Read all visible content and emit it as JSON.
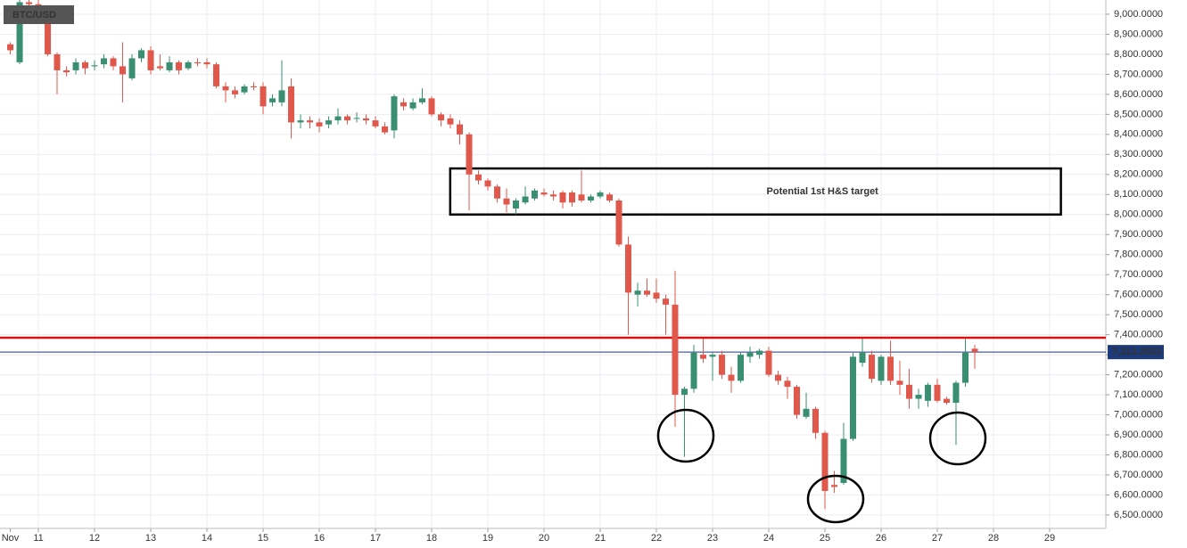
{
  "chart_data": {
    "type": "candlestick",
    "symbol": "BTC/USD",
    "x": [
      10.5,
      10.667,
      10.833,
      11,
      11.167,
      11.333,
      11.5,
      11.667,
      11.833,
      12,
      12.167,
      12.333,
      12.5,
      12.667,
      12.833,
      13,
      13.167,
      13.333,
      13.5,
      13.667,
      13.833,
      14,
      14.167,
      14.333,
      14.5,
      14.667,
      14.833,
      15,
      15.167,
      15.333,
      15.5,
      15.667,
      15.833,
      16,
      16.167,
      16.333,
      16.5,
      16.667,
      16.833,
      17,
      17.167,
      17.333,
      17.5,
      17.667,
      17.833,
      18,
      18.167,
      18.333,
      18.5,
      18.667,
      18.833,
      19,
      19.167,
      19.333,
      19.5,
      19.667,
      19.833,
      20,
      20.167,
      20.333,
      20.5,
      20.667,
      20.833,
      21,
      21.167,
      21.333,
      21.5,
      21.667,
      21.833,
      22,
      22.167,
      22.333,
      22.5,
      22.667,
      22.833,
      23,
      23.167,
      23.333,
      23.5,
      23.667,
      23.833,
      24,
      24.167,
      24.333,
      24.5,
      24.667,
      24.833,
      25,
      25.167,
      25.333,
      25.5,
      25.667,
      25.833,
      26,
      26.167,
      26.333,
      26.5,
      26.667,
      26.833,
      27,
      27.167,
      27.333,
      27.5,
      27.667
    ],
    "open": [
      8850,
      8760,
      9060,
      9050,
      9000,
      8800,
      8720,
      8720,
      8760,
      8740,
      8750,
      8780,
      8740,
      8680,
      8780,
      8820,
      8740,
      8720,
      8760,
      8730,
      8760,
      8760,
      8750,
      8640,
      8620,
      8610,
      8640,
      8640,
      8560,
      8560,
      8640,
      8460,
      8470,
      8460,
      8450,
      8470,
      8490,
      8480,
      8480,
      8470,
      8440,
      8420,
      8560,
      8530,
      8560,
      8580,
      8500,
      8480,
      8450,
      8400,
      8200,
      8170,
      8140,
      8080,
      8030,
      8060,
      8080,
      8110,
      8100,
      8110,
      8110,
      8100,
      8070,
      8090,
      8100,
      8070,
      7850,
      7600,
      7620,
      7610,
      7580,
      7550,
      7100,
      7130,
      7300,
      7290,
      7300,
      7200,
      7170,
      7290,
      7300,
      7320,
      7200,
      7170,
      7140,
      6990,
      7030,
      6910,
      6650,
      6660,
      6880,
      7260,
      7300,
      7170,
      7290,
      7170,
      7150,
      7080,
      7070,
      7150,
      7080,
      7060,
      7160,
      7330
    ],
    "high": [
      8860,
      9071,
      9071,
      9071,
      9030,
      8810,
      8740,
      8780,
      8770,
      8770,
      8800,
      8790,
      8860,
      8800,
      8830,
      8840,
      8800,
      8790,
      8770,
      8770,
      8780,
      8780,
      8760,
      8660,
      8640,
      8650,
      8660,
      8660,
      8600,
      8770,
      8680,
      8500,
      8490,
      8480,
      8490,
      8530,
      8500,
      8510,
      8500,
      8490,
      8460,
      8600,
      8580,
      8580,
      8630,
      8590,
      8510,
      8500,
      8470,
      8410,
      8220,
      8180,
      8150,
      8130,
      8080,
      8140,
      8130,
      8130,
      8120,
      8120,
      8120,
      8220,
      8100,
      8120,
      8110,
      8080,
      7890,
      7660,
      7680,
      7680,
      7600,
      7720,
      7140,
      7350,
      7380,
      7310,
      7320,
      7240,
      7310,
      7340,
      7330,
      7340,
      7220,
      7190,
      7150,
      7110,
      7040,
      6920,
      6720,
      6960,
      7310,
      7380,
      7320,
      7300,
      7370,
      7270,
      7230,
      7130,
      7160,
      7180,
      7090,
      7170,
      7380,
      7350
    ],
    "low": [
      8800,
      8750,
      9000,
      9010,
      8790,
      8600,
      8690,
      8700,
      8700,
      8720,
      8730,
      8720,
      8560,
      8670,
      8760,
      8700,
      8720,
      8710,
      8700,
      8720,
      8740,
      8730,
      8630,
      8560,
      8580,
      8600,
      8620,
      8500,
      8540,
      8540,
      8380,
      8430,
      8430,
      8410,
      8430,
      8450,
      8450,
      8460,
      8450,
      8430,
      8400,
      8380,
      8520,
      8520,
      8550,
      8490,
      8440,
      8430,
      8350,
      8020,
      8150,
      8120,
      8060,
      8010,
      8000,
      8050,
      8070,
      8090,
      8070,
      8030,
      8040,
      8060,
      8060,
      8080,
      8060,
      7840,
      7400,
      7540,
      7590,
      7560,
      7400,
      6940,
      6790,
      7110,
      7260,
      7170,
      7180,
      7110,
      7160,
      7260,
      7280,
      7190,
      7150,
      7080,
      6980,
      6980,
      6880,
      6530,
      6610,
      6650,
      6870,
      7240,
      7160,
      7150,
      7150,
      7100,
      7030,
      7030,
      7040,
      7060,
      7050,
      6850,
      7140,
      7230
    ],
    "close": [
      8820,
      9060,
      9050,
      9040,
      8800,
      8720,
      8710,
      8760,
      8730,
      8745,
      8780,
      8740,
      8700,
      8780,
      8820,
      8720,
      8730,
      8760,
      8720,
      8760,
      8755,
      8750,
      8640,
      8620,
      8600,
      8640,
      8635,
      8540,
      8580,
      8620,
      8460,
      8470,
      8460,
      8440,
      8470,
      8490,
      8470,
      8482,
      8470,
      8440,
      8410,
      8590,
      8540,
      8560,
      8580,
      8500,
      8470,
      8450,
      8400,
      8200,
      8170,
      8140,
      8080,
      8050,
      8070,
      8090,
      8120,
      8100,
      8090,
      8060,
      8060,
      8070,
      8090,
      8110,
      8070,
      7850,
      7610,
      7620,
      7600,
      7580,
      7550,
      7100,
      7130,
      7310,
      7280,
      7300,
      7200,
      7170,
      7300,
      7310,
      7320,
      7200,
      7170,
      7140,
      7000,
      7030,
      6910,
      6620,
      6640,
      6880,
      7290,
      7310,
      7180,
      7290,
      7170,
      7150,
      7080,
      7100,
      7150,
      7070,
      7060,
      7160,
      7310,
      7313.2653
    ],
    "colors": {
      "up": "#3a8f72",
      "down": "#e0574b"
    },
    "xlim": [
      10.317,
      30.0
    ],
    "xticks": [
      {
        "value": 10.5,
        "label": "Nov"
      },
      11,
      12,
      13,
      14,
      15,
      16,
      17,
      18,
      19,
      20,
      21,
      22,
      23,
      24,
      25,
      26,
      27,
      28,
      29
    ],
    "ylim": [
      6433,
      9071
    ],
    "yticks": [
      {
        "value": 6500,
        "label": "6,500.0000"
      },
      {
        "value": 6600,
        "label": "6,600.0000"
      },
      {
        "value": 6700,
        "label": "6,700.0000"
      },
      {
        "value": 6800,
        "label": "6,800.0000"
      },
      {
        "value": 6900,
        "label": "6,900.0000"
      },
      {
        "value": 7000,
        "label": "7,000.0000"
      },
      {
        "value": 7100,
        "label": "7,100.0000"
      },
      {
        "value": 7200,
        "label": "7,200.0000"
      },
      {
        "value": 7300,
        "label": "7,300.0000"
      },
      {
        "value": 7400,
        "label": "7,400.0000"
      },
      {
        "value": 7500,
        "label": "7,500.0000"
      },
      {
        "value": 7600,
        "label": "7,600.0000"
      },
      {
        "value": 7700,
        "label": "7,700.0000"
      },
      {
        "value": 7800,
        "label": "7,800.0000"
      },
      {
        "value": 7900,
        "label": "7,900.0000"
      },
      {
        "value": 8000,
        "label": "8,000.0000"
      },
      {
        "value": 8100,
        "label": "8,100.0000"
      },
      {
        "value": 8200,
        "label": "8,200.0000"
      },
      {
        "value": 8300,
        "label": "8,300.0000"
      },
      {
        "value": 8400,
        "label": "8,400.0000"
      },
      {
        "value": 8500,
        "label": "8,500.0000"
      },
      {
        "value": 8600,
        "label": "8,600.0000"
      },
      {
        "value": 8700,
        "label": "8,700.0000"
      },
      {
        "value": 8800,
        "label": "8,800.0000"
      },
      {
        "value": 8900,
        "label": "8,900.0000"
      },
      {
        "value": 9000,
        "label": "9,000.0000"
      }
    ],
    "grid": true,
    "last_price": {
      "value": 7313.2653,
      "label": "7,313.2653",
      "color": "#1d3a7a"
    },
    "resistance": {
      "value": 7385,
      "color": "#e01010"
    },
    "target_zone": {
      "text": "Potential 1st H&S target",
      "ylim": [
        8000,
        8230
      ],
      "xlim": [
        18.33,
        29.2
      ]
    }
  }
}
